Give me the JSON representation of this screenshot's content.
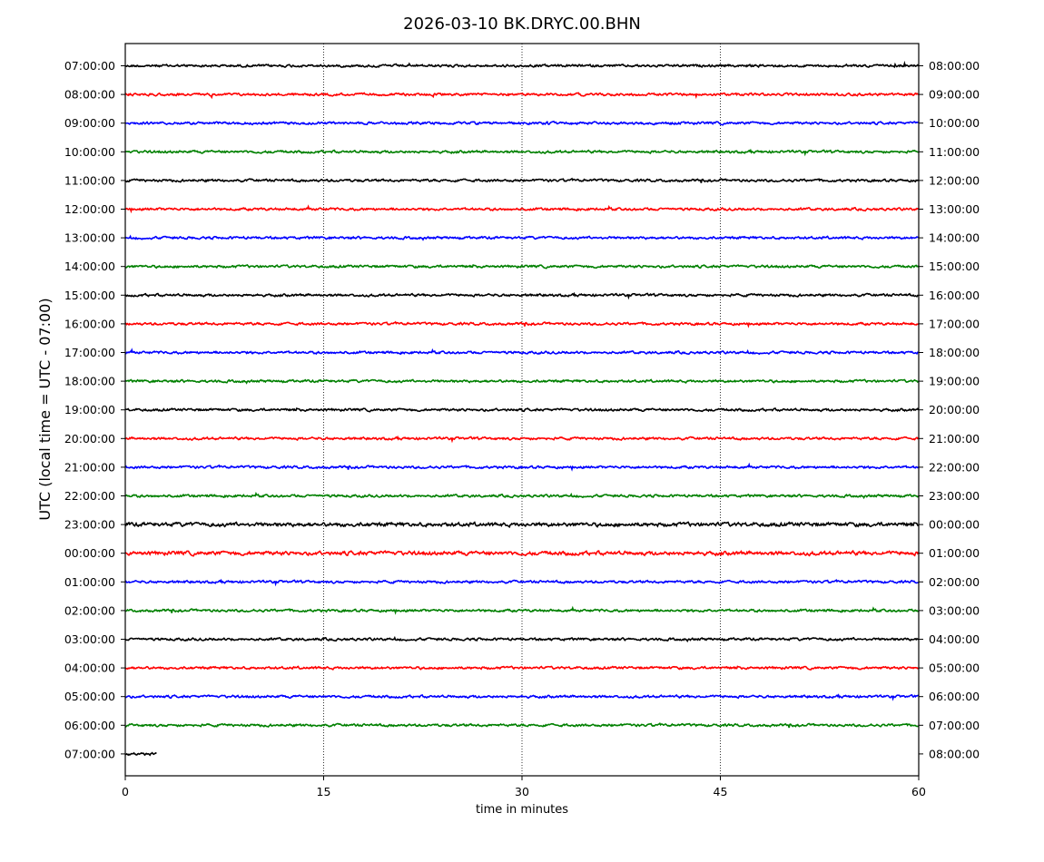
{
  "chart_data": {
    "type": "line",
    "title": "2026-03-10 BK.DRYC.00.BHN",
    "xlabel": "time in minutes",
    "ylabel": "UTC (local time = UTC - 07:00)",
    "xlim": [
      0,
      60
    ],
    "x_ticks": [
      "0",
      "15",
      "30",
      "45",
      "60"
    ],
    "x_tick_values": [
      0,
      15,
      30,
      45,
      60
    ],
    "grid": "vertical dotted at 15, 30, 45",
    "left_tick_labels": [
      "07:00:00",
      "08:00:00",
      "09:00:00",
      "10:00:00",
      "11:00:00",
      "12:00:00",
      "13:00:00",
      "14:00:00",
      "15:00:00",
      "16:00:00",
      "17:00:00",
      "18:00:00",
      "19:00:00",
      "20:00:00",
      "21:00:00",
      "22:00:00",
      "23:00:00",
      "00:00:00",
      "01:00:00",
      "02:00:00",
      "03:00:00",
      "04:00:00",
      "05:00:00",
      "06:00:00",
      "07:00:00"
    ],
    "right_tick_labels": [
      "08:00:00",
      "09:00:00",
      "10:00:00",
      "11:00:00",
      "12:00:00",
      "13:00:00",
      "14:00:00",
      "15:00:00",
      "16:00:00",
      "17:00:00",
      "18:00:00",
      "19:00:00",
      "20:00:00",
      "21:00:00",
      "22:00:00",
      "23:00:00",
      "00:00:00",
      "01:00:00",
      "02:00:00",
      "03:00:00",
      "04:00:00",
      "05:00:00",
      "06:00:00",
      "07:00:00",
      "08:00:00"
    ],
    "trace_colors": [
      "#000000",
      "#ff0000",
      "#0000ff",
      "#008000"
    ],
    "traces": [
      {
        "row": 0,
        "start_min": 0,
        "end_min": 60
      },
      {
        "row": 1,
        "start_min": 0,
        "end_min": 60
      },
      {
        "row": 2,
        "start_min": 0,
        "end_min": 60
      },
      {
        "row": 3,
        "start_min": 0,
        "end_min": 60
      },
      {
        "row": 4,
        "start_min": 0,
        "end_min": 60
      },
      {
        "row": 5,
        "start_min": 0,
        "end_min": 60
      },
      {
        "row": 6,
        "start_min": 0,
        "end_min": 60
      },
      {
        "row": 7,
        "start_min": 0,
        "end_min": 60
      },
      {
        "row": 8,
        "start_min": 0,
        "end_min": 60
      },
      {
        "row": 9,
        "start_min": 0,
        "end_min": 60
      },
      {
        "row": 10,
        "start_min": 0,
        "end_min": 60
      },
      {
        "row": 11,
        "start_min": 0,
        "end_min": 60
      },
      {
        "row": 12,
        "start_min": 0,
        "end_min": 60
      },
      {
        "row": 13,
        "start_min": 0,
        "end_min": 60
      },
      {
        "row": 14,
        "start_min": 0,
        "end_min": 60
      },
      {
        "row": 15,
        "start_min": 0,
        "end_min": 60
      },
      {
        "row": 16,
        "start_min": 0,
        "end_min": 60
      },
      {
        "row": 17,
        "start_min": 0,
        "end_min": 60
      },
      {
        "row": 18,
        "start_min": 0,
        "end_min": 60
      },
      {
        "row": 19,
        "start_min": 0,
        "end_min": 60
      },
      {
        "row": 20,
        "start_min": 0,
        "end_min": 60
      },
      {
        "row": 21,
        "start_min": 0,
        "end_min": 60
      },
      {
        "row": 22,
        "start_min": 0,
        "end_min": 60
      },
      {
        "row": 23,
        "start_min": 0,
        "end_min": 60
      },
      {
        "row": 24,
        "start_min": 0,
        "end_min": 2.4
      }
    ]
  }
}
